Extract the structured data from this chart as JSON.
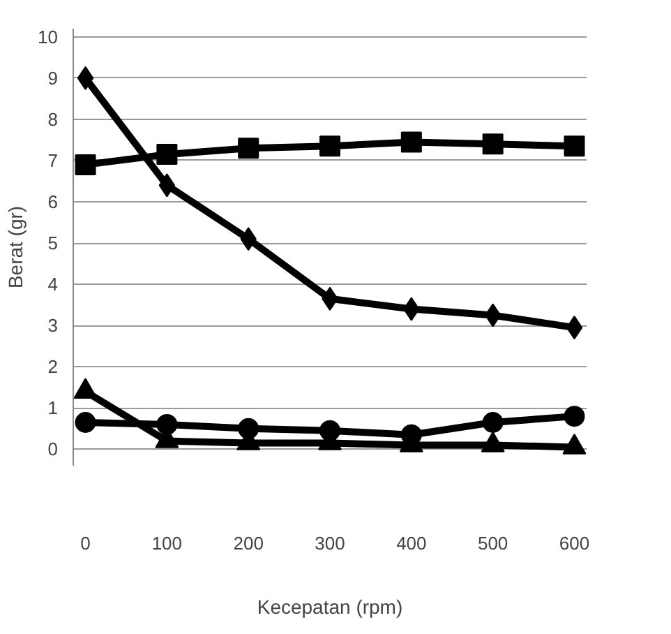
{
  "chart_data": {
    "type": "line",
    "xlabel": "Kecepatan (rpm)",
    "ylabel": "Berat (gr)",
    "x": [
      0,
      100,
      200,
      300,
      400,
      500,
      600
    ],
    "series": [
      {
        "color": "#000000",
        "marker": "diamond",
        "values": [
          9,
          6.4,
          5.1,
          3.65,
          3.4,
          3.25,
          2.95
        ]
      },
      {
        "color": "#000000",
        "marker": "square",
        "values": [
          6.9,
          7.15,
          7.3,
          7.35,
          7.45,
          7.4,
          7.35
        ]
      },
      {
        "color": "#000000",
        "marker": "triangle",
        "values": [
          1.4,
          0.2,
          0.15,
          0.15,
          0.1,
          0.1,
          0.05
        ]
      },
      {
        "color": "#000000",
        "marker": "circle",
        "values": [
          0.65,
          0.6,
          0.5,
          0.45,
          0.35,
          0.65,
          0.8
        ]
      }
    ],
    "xlim": [
      -15,
      615
    ],
    "ylim": [
      -0.4,
      10.2
    ],
    "xticks": [
      0,
      100,
      200,
      300,
      400,
      500,
      600
    ],
    "yticks": [
      0,
      1,
      2,
      3,
      4,
      5,
      6,
      7,
      8,
      9,
      10
    ],
    "grid": "y",
    "line_style": "solid"
  }
}
